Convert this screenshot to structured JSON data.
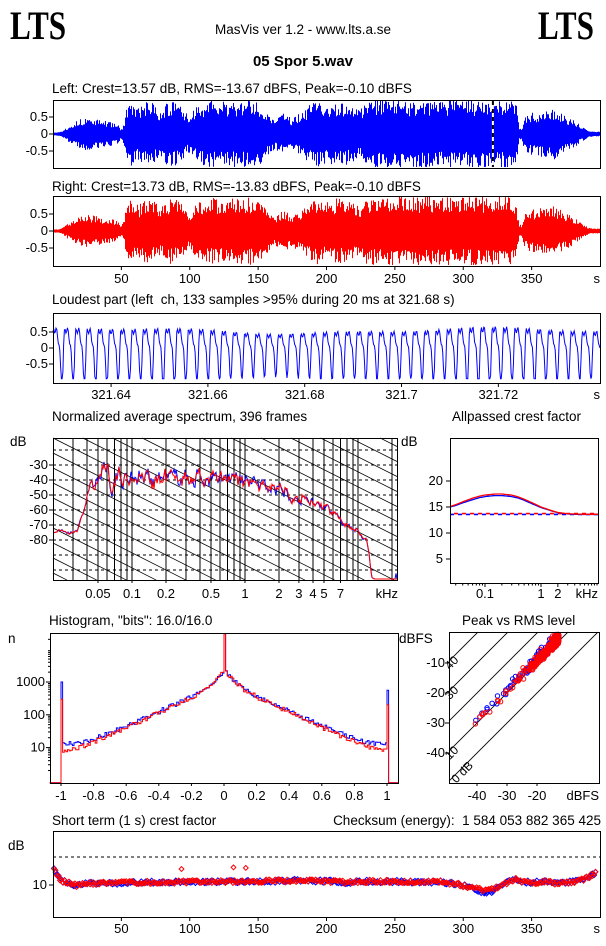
{
  "header": {
    "logo_left": "LTS",
    "logo_right": "LTS",
    "center": "MasVis ver 1.2 - www.lts.a.se",
    "title": "05 Spor 5.wav"
  },
  "panels": {
    "left_wave": {
      "title": "Left: Crest=13.57 dB, RMS=-13.67 dBFS, Peak=-0.10 dBFS"
    },
    "right_wave": {
      "title": "Right: Crest=13.73 dB, RMS=-13.83 dBFS, Peak=-0.10 dBFS"
    },
    "loudest": {
      "title": "Loudest part (left  ch, 133 samples >95% during 20 ms at 321.68 s)"
    },
    "spectrum": {
      "title": "Normalized average spectrum, 396 frames",
      "ylabel": "dB"
    },
    "allpassed": {
      "title": "Allpassed crest factor",
      "ylabel": "dB"
    },
    "histogram": {
      "title": "Histogram, \"bits\": 16.0/16.0",
      "ylabel": "n"
    },
    "peak_rms": {
      "title": "Peak vs RMS level",
      "ylabel": "dBFS"
    },
    "short_crest": {
      "title": "Short term (1 s) crest factor",
      "ylabel": "dB"
    },
    "checksum": {
      "label": "Checksum (energy):  1 584 053 882 365 425"
    }
  },
  "colors": {
    "left": "#0000ff",
    "right": "#ff0000",
    "axis": "#000000",
    "background": "#ffffff"
  },
  "chart_data": {
    "waveform": {
      "type": "waveform-pair",
      "xlim_s": [
        0,
        400
      ],
      "xticks": [
        50,
        100,
        150,
        200,
        250,
        300,
        350
      ],
      "x_unit": "s",
      "yticks": [
        0.5,
        0,
        -0.5
      ],
      "cursor_s": 321.68,
      "left_stats": {
        "crest_db": 13.57,
        "rms_dbfs": -13.67,
        "peak_dbfs": -0.1
      },
      "right_stats": {
        "crest_db": 13.73,
        "rms_dbfs": -13.83,
        "peak_dbfs": -0.1
      },
      "envelope": [
        [
          0,
          0.02
        ],
        [
          3,
          0.02
        ],
        [
          6,
          0.05
        ],
        [
          10,
          0.18
        ],
        [
          14,
          0.3
        ],
        [
          18,
          0.38
        ],
        [
          23,
          0.45
        ],
        [
          28,
          0.44
        ],
        [
          33,
          0.4
        ],
        [
          38,
          0.36
        ],
        [
          43,
          0.33
        ],
        [
          47,
          0.25
        ],
        [
          50,
          0.12
        ],
        [
          52,
          0.35
        ],
        [
          54,
          0.8
        ],
        [
          57,
          0.92
        ],
        [
          60,
          0.85
        ],
        [
          63,
          0.75
        ],
        [
          66,
          0.88
        ],
        [
          70,
          0.95
        ],
        [
          74,
          0.85
        ],
        [
          78,
          0.72
        ],
        [
          82,
          0.86
        ],
        [
          86,
          0.94
        ],
        [
          90,
          0.9
        ],
        [
          94,
          0.8
        ],
        [
          97,
          0.6
        ],
        [
          100,
          0.52
        ],
        [
          103,
          0.68
        ],
        [
          106,
          0.85
        ],
        [
          110,
          0.93
        ],
        [
          114,
          0.97
        ],
        [
          120,
          0.92
        ],
        [
          126,
          0.94
        ],
        [
          132,
          0.97
        ],
        [
          138,
          0.94
        ],
        [
          144,
          0.98
        ],
        [
          150,
          0.9
        ],
        [
          154,
          0.8
        ],
        [
          157,
          0.6
        ],
        [
          160,
          0.48
        ],
        [
          163,
          0.42
        ],
        [
          166,
          0.55
        ],
        [
          169,
          0.62
        ],
        [
          172,
          0.5
        ],
        [
          175,
          0.44
        ],
        [
          178,
          0.52
        ],
        [
          181,
          0.6
        ],
        [
          184,
          0.68
        ],
        [
          187,
          0.82
        ],
        [
          190,
          0.92
        ],
        [
          193,
          0.97
        ],
        [
          197,
          0.88
        ],
        [
          201,
          0.82
        ],
        [
          205,
          0.9
        ],
        [
          209,
          0.95
        ],
        [
          213,
          0.9
        ],
        [
          217,
          0.84
        ],
        [
          221,
          0.76
        ],
        [
          224,
          0.7
        ],
        [
          227,
          0.85
        ],
        [
          230,
          0.96
        ],
        [
          234,
          1
        ],
        [
          242,
          0.98
        ],
        [
          252,
          1
        ],
        [
          262,
          0.98
        ],
        [
          272,
          1
        ],
        [
          282,
          0.98
        ],
        [
          292,
          1
        ],
        [
          302,
          0.98
        ],
        [
          312,
          1
        ],
        [
          322,
          0.99
        ],
        [
          330,
          1
        ],
        [
          336,
          0.97
        ],
        [
          339,
          0.9
        ],
        [
          341,
          0.2
        ],
        [
          343,
          0.12
        ],
        [
          345,
          0.45
        ],
        [
          348,
          0.55
        ],
        [
          351,
          0.62
        ],
        [
          354,
          0.58
        ],
        [
          357,
          0.65
        ],
        [
          360,
          0.72
        ],
        [
          363,
          0.68
        ],
        [
          366,
          0.74
        ],
        [
          369,
          0.66
        ],
        [
          372,
          0.58
        ],
        [
          375,
          0.52
        ],
        [
          378,
          0.46
        ],
        [
          381,
          0.38
        ],
        [
          384,
          0.3
        ],
        [
          387,
          0.2
        ],
        [
          390,
          0.12
        ],
        [
          392,
          0.07
        ],
        [
          395,
          0.05
        ],
        [
          400,
          0.04
        ]
      ]
    },
    "loudest": {
      "type": "line",
      "samples_over_95pct": 133,
      "window_ms": 20,
      "at_s": 321.68,
      "xlim_s": [
        321.628,
        321.741
      ],
      "xticks": [
        321.64,
        321.66,
        321.68,
        321.7,
        321.72
      ],
      "x_unit": "s",
      "yticks": [
        0.5,
        0,
        -0.5
      ],
      "freq_hz": 430,
      "amp": 0.85
    },
    "spectrum": {
      "type": "line-pair",
      "frames": 396,
      "xlim_khz": [
        0.02,
        22
      ],
      "xticks": [
        0.05,
        0.1,
        0.2,
        0.5,
        1,
        2,
        3,
        4,
        5,
        7
      ],
      "x_unit": "kHz",
      "grid_freqs": [
        0.03,
        0.04,
        0.05,
        0.06,
        0.07,
        0.08,
        0.09,
        0.1,
        0.2,
        0.3,
        0.4,
        0.5,
        0.6,
        0.7,
        0.8,
        0.9,
        1,
        2,
        3,
        4,
        5,
        6,
        7,
        8,
        9,
        10,
        20
      ],
      "yticks": [
        -30,
        -40,
        -50,
        -60,
        -70,
        -80
      ],
      "dashed_levels": [
        -20,
        -30,
        -40,
        -50,
        -60,
        -70,
        -80,
        -90,
        -100
      ],
      "diag_slope_db_per_decade": 38,
      "diag_step_db": 10,
      "mean_db": [
        [
          0.02,
          -75
        ],
        [
          0.024,
          -73.5
        ],
        [
          0.028,
          -75.5
        ],
        [
          0.033,
          -73
        ],
        [
          0.037,
          -62
        ],
        [
          0.041,
          -47
        ],
        [
          0.044,
          -42
        ],
        [
          0.047,
          -49
        ],
        [
          0.052,
          -34
        ],
        [
          0.057,
          -30
        ],
        [
          0.062,
          -33
        ],
        [
          0.067,
          -46
        ],
        [
          0.072,
          -40
        ],
        [
          0.08,
          -37
        ],
        [
          0.09,
          -40
        ],
        [
          0.1,
          -36
        ],
        [
          0.12,
          -38
        ],
        [
          0.15,
          -39
        ],
        [
          0.2,
          -38
        ],
        [
          0.3,
          -38
        ],
        [
          0.4,
          -39
        ],
        [
          0.5,
          -40
        ],
        [
          0.7,
          -40
        ],
        [
          1.0,
          -41
        ],
        [
          1.3,
          -43
        ],
        [
          1.7,
          -45
        ],
        [
          2.2,
          -47
        ],
        [
          3,
          -51
        ],
        [
          4,
          -55
        ],
        [
          5,
          -59
        ],
        [
          6,
          -62
        ],
        [
          7,
          -65
        ],
        [
          8,
          -70
        ],
        [
          10,
          -74
        ],
        [
          12,
          -80
        ],
        [
          12.6,
          -90
        ],
        [
          13.2,
          -105
        ],
        [
          14,
          -106
        ],
        [
          22,
          -106
        ]
      ],
      "wiggle_db": [
        [
          0.02,
          1
        ],
        [
          0.035,
          2
        ],
        [
          0.05,
          8
        ],
        [
          0.08,
          9
        ],
        [
          0.3,
          9
        ],
        [
          1,
          8
        ],
        [
          2,
          7
        ],
        [
          4,
          5
        ],
        [
          8,
          3.5
        ],
        [
          12,
          2.5
        ],
        [
          13,
          1
        ],
        [
          14,
          0
        ],
        [
          22,
          0
        ]
      ]
    },
    "allpassed": {
      "type": "line-pair",
      "xticks": [
        0.1,
        1,
        2
      ],
      "minor_ticks": [
        0.03,
        0.04,
        0.05,
        0.06,
        0.07,
        0.08,
        0.09,
        0.2,
        0.3,
        0.4,
        0.5,
        0.6,
        0.7,
        0.8,
        0.9,
        3,
        4,
        5,
        6,
        7,
        8,
        9,
        10
      ],
      "x_unit": "kHz",
      "yticks": [
        5,
        10,
        15,
        20
      ],
      "ref_crest_db": {
        "left": 13.57,
        "right": 13.73
      },
      "left": [
        [
          0.024,
          15.0
        ],
        [
          0.03,
          15.3
        ],
        [
          0.04,
          15.8
        ],
        [
          0.06,
          16.4
        ],
        [
          0.08,
          16.8
        ],
        [
          0.1,
          17.0
        ],
        [
          0.15,
          17.2
        ],
        [
          0.2,
          17.2
        ],
        [
          0.3,
          17.0
        ],
        [
          0.4,
          16.7
        ],
        [
          0.5,
          16.3
        ],
        [
          0.7,
          15.6
        ],
        [
          1,
          14.9
        ],
        [
          1.5,
          14.3
        ],
        [
          2,
          13.9
        ],
        [
          3,
          13.65
        ],
        [
          4,
          13.6
        ],
        [
          6,
          13.55
        ],
        [
          10.4,
          13.55
        ]
      ],
      "right": [
        [
          0.024,
          15.1
        ],
        [
          0.03,
          15.45
        ],
        [
          0.04,
          16.0
        ],
        [
          0.06,
          16.7
        ],
        [
          0.08,
          17.1
        ],
        [
          0.1,
          17.3
        ],
        [
          0.15,
          17.5
        ],
        [
          0.2,
          17.5
        ],
        [
          0.3,
          17.3
        ],
        [
          0.4,
          16.9
        ],
        [
          0.5,
          16.5
        ],
        [
          0.7,
          15.8
        ],
        [
          1,
          15.0
        ],
        [
          1.5,
          14.35
        ],
        [
          2,
          13.95
        ],
        [
          3,
          13.7
        ],
        [
          4,
          13.65
        ],
        [
          6,
          13.6
        ],
        [
          10.4,
          13.6
        ]
      ]
    },
    "histogram": {
      "type": "histogram-line-pair",
      "bits_left": 16.0,
      "bits_right": 16.0,
      "xticks": [
        -1,
        -0.8,
        -0.6,
        -0.4,
        -0.2,
        0,
        0.2,
        0.4,
        0.6,
        0.8,
        1
      ],
      "yticks": [
        10,
        100,
        1000
      ],
      "left": {
        "spike_neg": 1000,
        "spike_pos": 560,
        "shape": [
          [
            0,
            31000
          ],
          [
            0.003,
            2600
          ],
          [
            0.006,
            2300
          ],
          [
            0.012,
            1900
          ],
          [
            0.03,
            1500
          ],
          [
            0.06,
            1050
          ],
          [
            0.12,
            600
          ],
          [
            0.2,
            350
          ],
          [
            0.3,
            210
          ],
          [
            0.4,
            125
          ],
          [
            0.5,
            75
          ],
          [
            0.6,
            45
          ],
          [
            0.7,
            28
          ],
          [
            0.8,
            18
          ],
          [
            0.85,
            15
          ],
          [
            0.9,
            14
          ],
          [
            0.95,
            13
          ],
          [
            0.99,
            14
          ]
        ]
      },
      "right": {
        "spike_neg": 300,
        "spike_pos": 200,
        "shape": [
          [
            0,
            31000
          ],
          [
            0.003,
            2550
          ],
          [
            0.006,
            2250
          ],
          [
            0.012,
            1850
          ],
          [
            0.03,
            1480
          ],
          [
            0.06,
            1020
          ],
          [
            0.12,
            580
          ],
          [
            0.2,
            330
          ],
          [
            0.3,
            195
          ],
          [
            0.4,
            115
          ],
          [
            0.5,
            68
          ],
          [
            0.6,
            40
          ],
          [
            0.7,
            24
          ],
          [
            0.8,
            15
          ],
          [
            0.85,
            12
          ],
          [
            0.9,
            9.5
          ],
          [
            0.95,
            8
          ],
          [
            0.99,
            8
          ]
        ]
      }
    },
    "peak_rms": {
      "type": "scatter-pair",
      "xticks": [
        -40,
        -30,
        -20
      ],
      "x_unit": "dBFS",
      "yticks": [
        -10,
        -20,
        -30,
        -40
      ],
      "diagonals": [
        {
          "crest_db": 0,
          "label": "0 dB"
        },
        {
          "crest_db": 10,
          "label": "10"
        },
        {
          "crest_db": 20,
          "label": ""
        },
        {
          "crest_db": 30,
          "label": "30"
        },
        {
          "crest_db": 40,
          "label": "40"
        }
      ],
      "gen": {
        "frames": 330,
        "frame_step_s": 1.2,
        "crest_mean_left_db": 11.0,
        "crest_mean_right_db": 10.7,
        "crest_sd_db": 2.1,
        "clip_peak_db": -0.5
      }
    },
    "short_crest": {
      "type": "scatter-pair",
      "xticks": [
        50,
        100,
        150,
        200,
        250,
        300,
        350
      ],
      "x_unit": "s",
      "ytick": 10,
      "dashed_db": 20,
      "gen": {
        "frame_step_s": 1.1,
        "base_db": 10.8,
        "noise_db": 1.3
      },
      "slow_trend": [
        [
          0,
          5.8
        ],
        [
          1.5,
          4.5
        ],
        [
          3,
          2.5
        ],
        [
          6,
          0.8
        ],
        [
          10,
          0.2
        ],
        [
          18,
          -1
        ],
        [
          22,
          -0.2
        ],
        [
          40,
          -0.2
        ],
        [
          60,
          0.1
        ],
        [
          80,
          0.2
        ],
        [
          100,
          0.4
        ],
        [
          120,
          0.3
        ],
        [
          150,
          0.5
        ],
        [
          180,
          0.8
        ],
        [
          200,
          0.6
        ],
        [
          215,
          0.1
        ],
        [
          230,
          0.5
        ],
        [
          250,
          0.4
        ],
        [
          270,
          0.3
        ],
        [
          285,
          0.2
        ],
        [
          295,
          -0.5
        ],
        [
          305,
          -1.6
        ],
        [
          312,
          -2.4
        ],
        [
          318,
          -2.8
        ],
        [
          324,
          -1.8
        ],
        [
          330,
          -0.5
        ],
        [
          335,
          0.8
        ],
        [
          338,
          1.4
        ],
        [
          342,
          0.4
        ],
        [
          350,
          0.1
        ],
        [
          360,
          0.3
        ],
        [
          368,
          -0.2
        ],
        [
          376,
          0.2
        ],
        [
          383,
          0.5
        ],
        [
          388,
          1
        ],
        [
          391,
          1.8
        ],
        [
          394,
          2.8
        ],
        [
          396,
          3.4
        ]
      ],
      "outliers_right": [
        [
          94,
          15.7
        ],
        [
          132,
          16.3
        ],
        [
          141,
          16.1
        ]
      ],
      "outliers_left": [
        [
          315,
          7.2
        ],
        [
          317,
          6.9
        ]
      ]
    }
  }
}
